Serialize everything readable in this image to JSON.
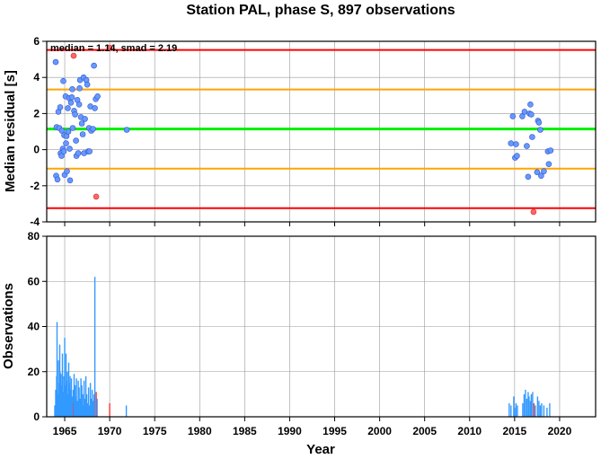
{
  "chart_data": [
    {
      "type": "scatter",
      "title": "Station PAL, phase S, 897 observations",
      "xlabel": "",
      "ylabel": "Median residual [s]",
      "annotation": "median = 1.14, smad = 2.19",
      "xlim": [
        1963,
        2024
      ],
      "ylim": [
        -4,
        6
      ],
      "x_ticks": [
        1965,
        1970,
        1975,
        1980,
        1985,
        1990,
        1995,
        2000,
        2005,
        2010,
        2015,
        2020
      ],
      "y_ticks": [
        -4,
        -2,
        0,
        2,
        4,
        6
      ],
      "y_tick_labels": [
        "-4",
        "-2",
        "0",
        "2",
        "4",
        "6"
      ],
      "grid": true,
      "reference_lines": [
        {
          "y": 5.52,
          "color": "#ff0000"
        },
        {
          "y": 3.33,
          "color": "#ffa500"
        },
        {
          "y": 1.14,
          "color": "#00ee00"
        },
        {
          "y": -1.05,
          "color": "#ffa500"
        },
        {
          "y": -3.24,
          "color": "#ff0000"
        }
      ],
      "colors": {
        "inlier": "#6699ff",
        "outlier": "#ff6666",
        "edge": "#3355cc"
      },
      "points": [
        {
          "x": 1964.0,
          "y": 4.85
        },
        {
          "x": 1964.05,
          "y": -1.45
        },
        {
          "x": 1964.1,
          "y": 1.25
        },
        {
          "x": 1964.2,
          "y": -1.65
        },
        {
          "x": 1964.3,
          "y": 2.1
        },
        {
          "x": 1964.4,
          "y": 1.2
        },
        {
          "x": 1964.5,
          "y": 2.35
        },
        {
          "x": 1964.55,
          "y": -0.2
        },
        {
          "x": 1964.65,
          "y": -0.35
        },
        {
          "x": 1964.7,
          "y": 1.05
        },
        {
          "x": 1964.8,
          "y": 0.05
        },
        {
          "x": 1964.85,
          "y": 3.8
        },
        {
          "x": 1964.9,
          "y": -0.1
        },
        {
          "x": 1964.95,
          "y": 0.8
        },
        {
          "x": 1965.0,
          "y": -1.4
        },
        {
          "x": 1965.1,
          "y": 2.95
        },
        {
          "x": 1965.15,
          "y": 0.35
        },
        {
          "x": 1965.2,
          "y": 0.75
        },
        {
          "x": 1965.25,
          "y": -1.2
        },
        {
          "x": 1965.35,
          "y": 2.3
        },
        {
          "x": 1965.4,
          "y": 1.0
        },
        {
          "x": 1965.5,
          "y": 2.85
        },
        {
          "x": 1965.55,
          "y": 0.05
        },
        {
          "x": 1965.6,
          "y": -1.7
        },
        {
          "x": 1965.7,
          "y": 2.6
        },
        {
          "x": 1965.8,
          "y": 2.9
        },
        {
          "x": 1965.85,
          "y": 3.35
        },
        {
          "x": 1965.9,
          "y": 1.2
        },
        {
          "x": 1966.0,
          "y": 5.2,
          "outlier": true
        },
        {
          "x": 1966.05,
          "y": 2.15
        },
        {
          "x": 1966.15,
          "y": 1.95
        },
        {
          "x": 1966.25,
          "y": 0.5
        },
        {
          "x": 1966.3,
          "y": -0.35
        },
        {
          "x": 1966.4,
          "y": 2.75
        },
        {
          "x": 1966.5,
          "y": -0.2
        },
        {
          "x": 1966.6,
          "y": 2.5
        },
        {
          "x": 1966.65,
          "y": 3.4
        },
        {
          "x": 1966.7,
          "y": 3.85
        },
        {
          "x": 1966.8,
          "y": 1.8
        },
        {
          "x": 1966.9,
          "y": 1.45
        },
        {
          "x": 1967.0,
          "y": 0.85
        },
        {
          "x": 1967.1,
          "y": 4.0
        },
        {
          "x": 1967.15,
          "y": -0.2
        },
        {
          "x": 1967.25,
          "y": 1.7
        },
        {
          "x": 1967.4,
          "y": 3.85
        },
        {
          "x": 1967.5,
          "y": 3.6
        },
        {
          "x": 1967.6,
          "y": -0.1
        },
        {
          "x": 1967.7,
          "y": 1.2
        },
        {
          "x": 1967.75,
          "y": -0.1
        },
        {
          "x": 1967.85,
          "y": 2.4
        },
        {
          "x": 1967.95,
          "y": 1.05
        },
        {
          "x": 1968.15,
          "y": 1.15
        },
        {
          "x": 1968.25,
          "y": 4.65
        },
        {
          "x": 1968.35,
          "y": 2.3
        },
        {
          "x": 1968.45,
          "y": 2.8
        },
        {
          "x": 1968.5,
          "y": -2.6,
          "outlier": true
        },
        {
          "x": 1968.65,
          "y": 2.95
        },
        {
          "x": 1970.0,
          "y": 5.65,
          "outlier": true
        },
        {
          "x": 1971.9,
          "y": 1.1
        },
        {
          "x": 2014.6,
          "y": 0.35
        },
        {
          "x": 2014.8,
          "y": 1.85
        },
        {
          "x": 2015.05,
          "y": -0.45
        },
        {
          "x": 2015.15,
          "y": 0.3
        },
        {
          "x": 2015.25,
          "y": -0.35
        },
        {
          "x": 2015.85,
          "y": 1.85
        },
        {
          "x": 2016.1,
          "y": 2.1
        },
        {
          "x": 2016.35,
          "y": 0.2
        },
        {
          "x": 2016.5,
          "y": -1.5
        },
        {
          "x": 2016.65,
          "y": 2.0
        },
        {
          "x": 2016.75,
          "y": 2.5
        },
        {
          "x": 2016.85,
          "y": 1.95
        },
        {
          "x": 2016.95,
          "y": 0.7
        },
        {
          "x": 2017.1,
          "y": -3.45,
          "outlier": true
        },
        {
          "x": 2017.5,
          "y": -1.25
        },
        {
          "x": 2017.6,
          "y": 1.6
        },
        {
          "x": 2017.7,
          "y": 1.5
        },
        {
          "x": 2017.85,
          "y": 1.1
        },
        {
          "x": 2017.95,
          "y": -1.45
        },
        {
          "x": 2018.25,
          "y": -1.2
        },
        {
          "x": 2018.7,
          "y": -0.1
        },
        {
          "x": 2018.8,
          "y": -0.8
        },
        {
          "x": 2019.0,
          "y": -0.05
        }
      ]
    },
    {
      "type": "bar",
      "title": "",
      "xlabel": "Year",
      "ylabel": "Observations",
      "xlim": [
        1963,
        2024
      ],
      "ylim": [
        0,
        80
      ],
      "x_ticks": [
        1965,
        1970,
        1975,
        1980,
        1985,
        1990,
        1995,
        2000,
        2005,
        2010,
        2015,
        2020
      ],
      "x_tick_labels": [
        "1965",
        "1970",
        "1975",
        "1980",
        "1985",
        "1990",
        "1995",
        "2000",
        "2005",
        "2010",
        "2015",
        "2020"
      ],
      "y_ticks": [
        0,
        20,
        40,
        60,
        80
      ],
      "y_tick_labels": [
        "0",
        "20",
        "40",
        "60",
        "80"
      ],
      "grid": true,
      "colors": {
        "inlier": "#3399ff",
        "outlier": "#ff3333"
      },
      "bars": [
        {
          "x": 1963.9,
          "y": 5
        },
        {
          "x": 1964.0,
          "y": 12
        },
        {
          "x": 1964.05,
          "y": 8
        },
        {
          "x": 1964.1,
          "y": 18
        },
        {
          "x": 1964.15,
          "y": 42
        },
        {
          "x": 1964.2,
          "y": 10
        },
        {
          "x": 1964.3,
          "y": 25
        },
        {
          "x": 1964.35,
          "y": 15
        },
        {
          "x": 1964.45,
          "y": 32
        },
        {
          "x": 1964.5,
          "y": 20
        },
        {
          "x": 1964.55,
          "y": 9
        },
        {
          "x": 1964.6,
          "y": 19
        },
        {
          "x": 1964.7,
          "y": 14
        },
        {
          "x": 1964.75,
          "y": 28
        },
        {
          "x": 1964.8,
          "y": 11
        },
        {
          "x": 1964.9,
          "y": 18
        },
        {
          "x": 1964.95,
          "y": 12
        },
        {
          "x": 1965.0,
          "y": 35
        },
        {
          "x": 1965.05,
          "y": 14
        },
        {
          "x": 1965.15,
          "y": 28
        },
        {
          "x": 1965.2,
          "y": 16
        },
        {
          "x": 1965.3,
          "y": 20
        },
        {
          "x": 1965.35,
          "y": 10
        },
        {
          "x": 1965.45,
          "y": 24
        },
        {
          "x": 1965.5,
          "y": 15
        },
        {
          "x": 1965.6,
          "y": 18
        },
        {
          "x": 1965.7,
          "y": 12
        },
        {
          "x": 1965.75,
          "y": 17
        },
        {
          "x": 1965.85,
          "y": 9
        },
        {
          "x": 1965.95,
          "y": 12
        },
        {
          "x": 1966.0,
          "y": 6,
          "outlier": true
        },
        {
          "x": 1966.05,
          "y": 19
        },
        {
          "x": 1966.15,
          "y": 14
        },
        {
          "x": 1966.25,
          "y": 9
        },
        {
          "x": 1966.3,
          "y": 17
        },
        {
          "x": 1966.4,
          "y": 7
        },
        {
          "x": 1966.5,
          "y": 16
        },
        {
          "x": 1966.6,
          "y": 13
        },
        {
          "x": 1966.7,
          "y": 8
        },
        {
          "x": 1966.8,
          "y": 17
        },
        {
          "x": 1966.9,
          "y": 14
        },
        {
          "x": 1967.0,
          "y": 10
        },
        {
          "x": 1967.05,
          "y": 5
        },
        {
          "x": 1967.15,
          "y": 16
        },
        {
          "x": 1967.25,
          "y": 8
        },
        {
          "x": 1967.35,
          "y": 18
        },
        {
          "x": 1967.45,
          "y": 10
        },
        {
          "x": 1967.55,
          "y": 6
        },
        {
          "x": 1967.65,
          "y": 13
        },
        {
          "x": 1967.75,
          "y": 5
        },
        {
          "x": 1967.85,
          "y": 15
        },
        {
          "x": 1967.95,
          "y": 8
        },
        {
          "x": 1968.05,
          "y": 12
        },
        {
          "x": 1968.15,
          "y": 7
        },
        {
          "x": 1968.25,
          "y": 10
        },
        {
          "x": 1968.35,
          "y": 62
        },
        {
          "x": 1968.5,
          "y": 11,
          "outlier": true
        },
        {
          "x": 1968.6,
          "y": 8
        },
        {
          "x": 1970.0,
          "y": 6,
          "outlier": true
        },
        {
          "x": 1971.85,
          "y": 5
        },
        {
          "x": 2014.4,
          "y": 6
        },
        {
          "x": 2014.6,
          "y": 5
        },
        {
          "x": 2014.9,
          "y": 9
        },
        {
          "x": 2015.0,
          "y": 4
        },
        {
          "x": 2015.15,
          "y": 6
        },
        {
          "x": 2015.3,
          "y": 5
        },
        {
          "x": 2015.9,
          "y": 6
        },
        {
          "x": 2016.05,
          "y": 10
        },
        {
          "x": 2016.2,
          "y": 12
        },
        {
          "x": 2016.35,
          "y": 8
        },
        {
          "x": 2016.5,
          "y": 11
        },
        {
          "x": 2016.6,
          "y": 9
        },
        {
          "x": 2016.75,
          "y": 7
        },
        {
          "x": 2016.85,
          "y": 10
        },
        {
          "x": 2017.0,
          "y": 11
        },
        {
          "x": 2017.15,
          "y": 6,
          "outlier": true
        },
        {
          "x": 2017.3,
          "y": 5
        },
        {
          "x": 2017.55,
          "y": 9
        },
        {
          "x": 2017.7,
          "y": 7
        },
        {
          "x": 2017.85,
          "y": 5
        },
        {
          "x": 2018.0,
          "y": 6
        },
        {
          "x": 2018.25,
          "y": 5
        },
        {
          "x": 2018.6,
          "y": 4
        },
        {
          "x": 2018.9,
          "y": 6
        }
      ]
    }
  ]
}
